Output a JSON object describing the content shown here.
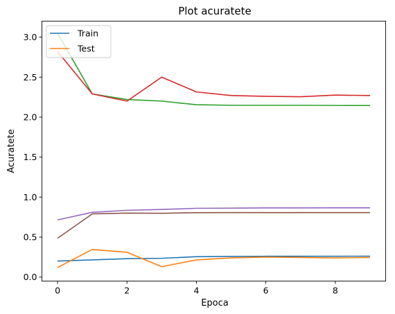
{
  "chart_data": {
    "type": "line",
    "title": "Plot acuratete",
    "xlabel": "Epoca",
    "ylabel": "Acuratete",
    "xlim": [
      -0.45,
      9.45
    ],
    "ylim": [
      -0.05,
      3.2
    ],
    "xticks": [
      0,
      2,
      4,
      6,
      8
    ],
    "yticks": [
      0.0,
      0.5,
      1.0,
      1.5,
      2.0,
      2.5,
      3.0
    ],
    "xtick_labels": [
      "0",
      "2",
      "4",
      "6",
      "8"
    ],
    "ytick_labels": [
      "0.0",
      "0.5",
      "1.0",
      "1.5",
      "2.0",
      "2.5",
      "3.0"
    ],
    "legend_position": "top-left",
    "x": [
      0,
      1,
      2,
      3,
      4,
      5,
      6,
      7,
      8,
      9
    ],
    "series": [
      {
        "name": "Train",
        "color": "#1f77b4",
        "values": [
          0.2,
          0.215,
          0.23,
          0.235,
          0.255,
          0.258,
          0.26,
          0.26,
          0.26,
          0.262
        ]
      },
      {
        "name": "Test",
        "color": "#ff7f0e",
        "values": [
          0.12,
          0.345,
          0.31,
          0.13,
          0.215,
          0.24,
          0.25,
          0.245,
          0.24,
          0.245
        ]
      },
      {
        "color": "#2ca02c",
        "values": [
          3.05,
          2.29,
          2.22,
          2.2,
          2.155,
          2.148,
          2.148,
          2.148,
          2.146,
          2.145
        ]
      },
      {
        "color": "#d62728",
        "values": [
          2.82,
          2.29,
          2.2,
          2.5,
          2.315,
          2.27,
          2.26,
          2.255,
          2.275,
          2.27
        ]
      },
      {
        "color": "#9467bd",
        "values": [
          0.715,
          0.81,
          0.835,
          0.845,
          0.86,
          0.862,
          0.865,
          0.865,
          0.866,
          0.866
        ]
      },
      {
        "color": "#8c564b",
        "values": [
          0.485,
          0.79,
          0.8,
          0.798,
          0.805,
          0.806,
          0.806,
          0.806,
          0.806,
          0.806
        ]
      }
    ]
  }
}
